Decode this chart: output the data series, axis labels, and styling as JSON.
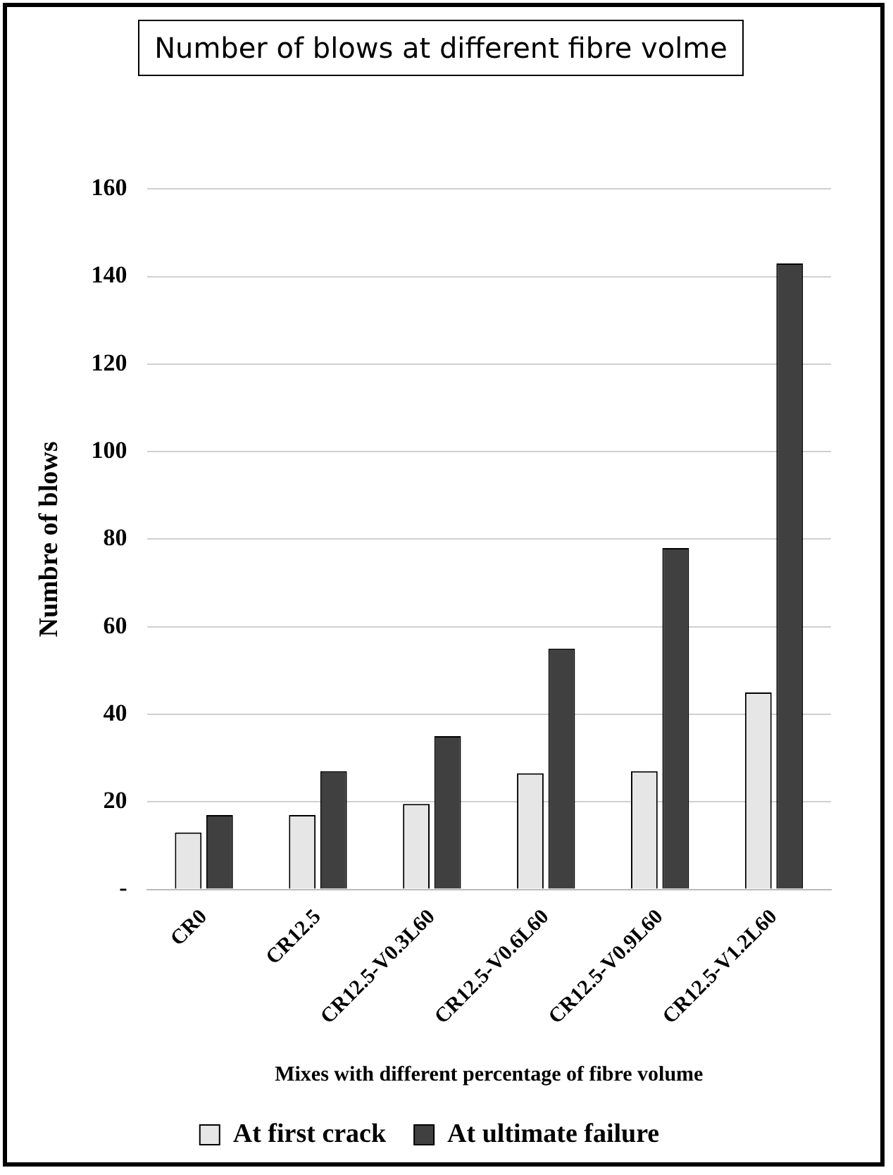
{
  "chart_data": {
    "type": "bar",
    "title": "Number of blows at different fibre volme",
    "xlabel": "Mixes with different percentage of fibre volume",
    "ylabel": "Numbre of blows",
    "categories": [
      "CR0",
      "CR12.5",
      "CR12.5-V0.3L60",
      "CR12.5-V0.6L60",
      "CR12.5-V0.9L60",
      "CR12.5-V1.2L60"
    ],
    "series": [
      {
        "name": "At first crack",
        "color": "#e6e6e6",
        "values": [
          13,
          17,
          19.5,
          26.5,
          27,
          45
        ]
      },
      {
        "name": "At ultimate failure",
        "color": "#404040",
        "values": [
          17,
          27,
          35,
          55,
          78,
          143
        ]
      }
    ],
    "ylim": [
      0,
      160
    ],
    "yticks": [
      {
        "value": 0,
        "label": "-"
      },
      20,
      40,
      60,
      80,
      100,
      120,
      140,
      160
    ],
    "grid": "y",
    "legend": "bottom"
  }
}
